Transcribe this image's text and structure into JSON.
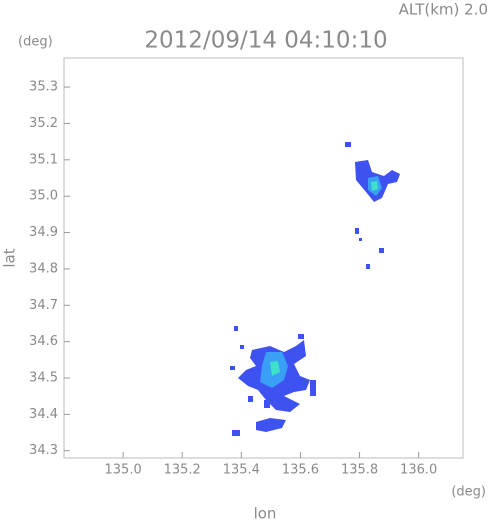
{
  "chart_data": {
    "type": "map",
    "title": "2012/09/14 04:10:10",
    "altitude_label": "ALT(km) 2.0",
    "y_unit": "(deg)",
    "x_unit": "(deg)",
    "xlabel": "lon",
    "ylabel": "lat",
    "xlim": [
      134.8,
      136.15
    ],
    "ylim": [
      34.28,
      35.38
    ],
    "xticks": [
      {
        "value": 135.0,
        "label": "135.0"
      },
      135.2,
      135.4,
      135.6,
      135.8,
      {
        "value": 136.0,
        "label": "136.0"
      }
    ],
    "yticks": [
      34.3,
      34.4,
      34.5,
      34.6,
      34.7,
      34.8,
      34.9,
      {
        "value": 35.0,
        "label": "35.0"
      },
      35.1,
      35.2,
      35.3
    ]
  }
}
